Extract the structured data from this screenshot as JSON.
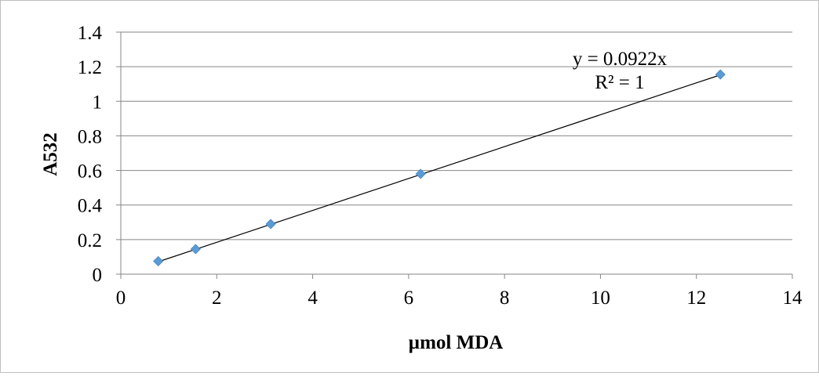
{
  "chart_data": {
    "type": "scatter",
    "xlabel": "µmol MDA",
    "ylabel": "A532",
    "xlim": [
      0,
      14
    ],
    "ylim": [
      0,
      1.4
    ],
    "x_ticks": [
      0,
      2,
      4,
      6,
      8,
      10,
      12,
      14
    ],
    "y_ticks": [
      0,
      0.2,
      0.4,
      0.6,
      0.8,
      1,
      1.2,
      1.4
    ],
    "x_tick_labels": [
      "0",
      "2",
      "4",
      "6",
      "8",
      "10",
      "12",
      "14"
    ],
    "y_tick_labels": [
      "0",
      "0.2",
      "0.4",
      "0.6",
      "0.8",
      "1",
      "1.2",
      "1.4"
    ],
    "grid": "horizontal",
    "legend": "none",
    "series": [
      {
        "x": [
          0.78,
          1.56,
          3.125,
          6.25,
          12.5
        ],
        "y": [
          0.075,
          0.145,
          0.29,
          0.58,
          1.155
        ],
        "marker": "diamond",
        "color": "#5b9bd5"
      }
    ],
    "trendline": {
      "slope": 0.0922,
      "intercept": 0,
      "x_range": [
        0.78,
        12.5
      ],
      "equation": "y = 0.0922x",
      "r_squared": "R² = 1",
      "color": "#000000"
    }
  }
}
